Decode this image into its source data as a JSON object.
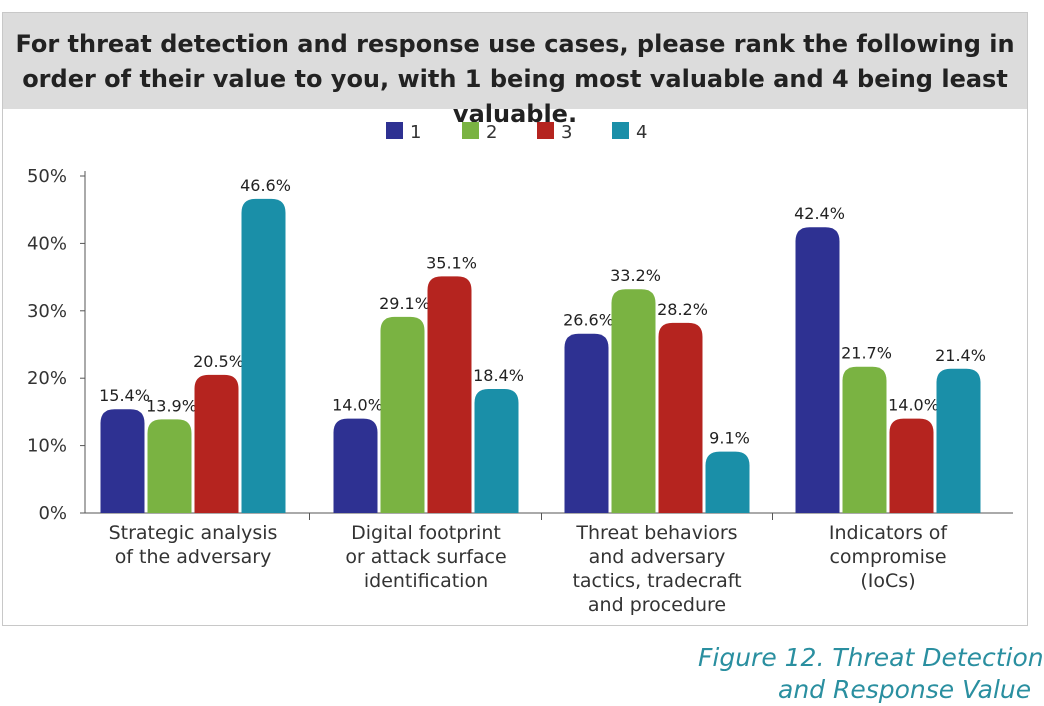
{
  "chart_data": {
    "type": "bar",
    "title": "For threat detection and response use cases, please rank the following in order of their value to you, with 1 being most valuable and 4 being least valuable.",
    "categories": [
      [
        "Strategic analysis",
        "of the adversary"
      ],
      [
        "Digital footprint",
        "or attack surface",
        "identification"
      ],
      [
        "Threat behaviors",
        "and adversary",
        "tactics, tradecraft",
        "and procedure"
      ],
      [
        "Indicators of",
        "compromise",
        "(IoCs)"
      ]
    ],
    "series": [
      {
        "name": "1",
        "color": "#2e3192",
        "values": [
          15.4,
          14.0,
          26.6,
          42.4
        ],
        "labels": [
          "15.4%",
          "14.0%",
          "26.6%",
          "42.4%"
        ]
      },
      {
        "name": "2",
        "color": "#7ab342",
        "values": [
          13.9,
          29.1,
          33.2,
          21.7
        ],
        "labels": [
          "13.9%",
          "29.1%",
          "33.2%",
          "21.7%"
        ]
      },
      {
        "name": "3",
        "color": "#b5241f",
        "values": [
          20.5,
          35.1,
          28.2,
          14.0
        ],
        "labels": [
          "20.5%",
          "35.1%",
          "28.2%",
          "14.0%"
        ]
      },
      {
        "name": "4",
        "color": "#1a8fa8",
        "values": [
          46.6,
          18.4,
          9.1,
          21.4
        ],
        "labels": [
          "46.6%",
          "18.4%",
          "9.1%",
          "21.4%"
        ]
      }
    ],
    "ylim": [
      0,
      50
    ],
    "yticks": [
      0,
      10,
      20,
      30,
      40,
      50
    ],
    "ytick_labels": [
      "0%",
      "10%",
      "20%",
      "30%",
      "40%",
      "50%"
    ],
    "legend_position": "top-center",
    "grid": false
  },
  "caption": {
    "line1": "Figure 12. Threat Detection",
    "line2": "and Response Value"
  }
}
